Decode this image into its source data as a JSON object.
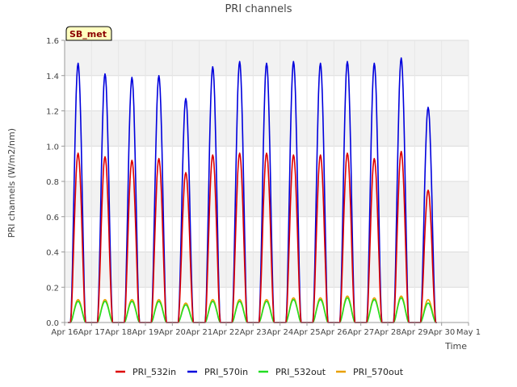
{
  "chart_data": {
    "type": "line",
    "title": "PRI channels",
    "xlabel": "Time",
    "ylabel": "PRI channels (W/m2/nm)",
    "ylim": [
      0,
      1.6
    ],
    "xlim": [
      0,
      15
    ],
    "yticks": [
      0.0,
      0.2,
      0.4,
      0.6,
      0.8,
      1.0,
      1.2,
      1.4,
      1.6
    ],
    "ytick_labels": [
      "0.0",
      "0.2",
      "0.4",
      "0.6",
      "0.8",
      "1.0",
      "1.2",
      "1.4",
      "1.6"
    ],
    "xticks": [
      0,
      1,
      2,
      3,
      4,
      5,
      6,
      7,
      8,
      9,
      10,
      11,
      12,
      13,
      14,
      15
    ],
    "xtick_labels": [
      "Apr 16",
      "Apr 17",
      "Apr 18",
      "Apr 19",
      "Apr 20",
      "Apr 21",
      "Apr 22",
      "Apr 23",
      "Apr 24",
      "Apr 25",
      "Apr 26",
      "Apr 27",
      "Apr 28",
      "Apr 29",
      "Apr 30",
      "May 1"
    ],
    "site_label": "SB_met",
    "legend_position": "bottom",
    "grid": true,
    "daily_peak_x": [
      0.5,
      1.5,
      2.5,
      3.5,
      4.5,
      5.5,
      6.5,
      7.5,
      8.5,
      9.5,
      10.5,
      11.5,
      12.5,
      13.5
    ],
    "series": [
      {
        "name": "PRI_532in",
        "color": "#dd0000",
        "daily_peaks": [
          0.96,
          0.94,
          0.92,
          0.93,
          0.85,
          0.95,
          0.96,
          0.96,
          0.95,
          0.95,
          0.96,
          0.93,
          0.97,
          0.75
        ]
      },
      {
        "name": "PRI_570in",
        "color": "#0000dd",
        "daily_peaks": [
          1.47,
          1.41,
          1.39,
          1.4,
          1.27,
          1.45,
          1.48,
          1.47,
          1.48,
          1.47,
          1.48,
          1.47,
          1.5,
          1.22
        ]
      },
      {
        "name": "PRI_532out",
        "color": "#22dd22",
        "daily_peaks": [
          0.12,
          0.12,
          0.12,
          0.12,
          0.1,
          0.12,
          0.12,
          0.12,
          0.13,
          0.13,
          0.14,
          0.13,
          0.14,
          0.11
        ]
      },
      {
        "name": "PRI_570out",
        "color": "#e8a000",
        "daily_peaks": [
          0.13,
          0.13,
          0.13,
          0.13,
          0.11,
          0.13,
          0.13,
          0.13,
          0.14,
          0.14,
          0.15,
          0.14,
          0.15,
          0.13
        ]
      }
    ]
  }
}
